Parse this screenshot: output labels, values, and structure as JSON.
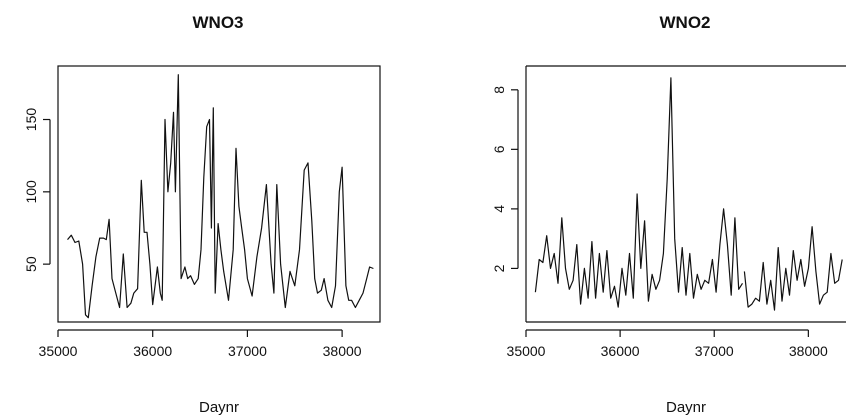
{
  "chart_data": [
    {
      "type": "line",
      "title": "WNO3",
      "xlabel": "Daynr",
      "ylabel": "",
      "xlim": [
        35000,
        38400
      ],
      "ylim": [
        10,
        187
      ],
      "xticks": [
        35000,
        36000,
        37000,
        38000
      ],
      "yticks": [
        50,
        100,
        150
      ],
      "grid": false,
      "segments": [
        {
          "x": [
            35100,
            35140,
            35180,
            35220,
            35260,
            35290,
            35320,
            35360,
            35400,
            35440,
            35480,
            35510,
            35540,
            35570,
            35610,
            35650,
            35690,
            35730,
            35770,
            35800,
            35840,
            35880,
            35910,
            35940,
            35970,
            36000,
            36050,
            36080,
            36100,
            36130,
            36160,
            36190,
            36220,
            36240,
            36270,
            36300,
            36340,
            36370,
            36400,
            36440,
            36480,
            36510,
            36540,
            36570,
            36600,
            36620,
            36640,
            36660,
            36690,
            36720,
            36750,
            36800,
            36850,
            36880,
            36910,
            36940,
            36970,
            37000,
            37050,
            37100,
            37150,
            37200,
            37250,
            37280,
            37310,
            37350,
            37400,
            37450,
            37500,
            37550,
            37600,
            37640,
            37680,
            37710,
            37740,
            37780,
            37810,
            37850,
            37890,
            37930,
            37970,
            38000,
            38040,
            38070,
            38100,
            38140,
            38180,
            38220,
            38260,
            38290,
            38330
          ],
          "y": [
            67,
            70,
            65,
            66,
            50,
            15,
            13,
            35,
            55,
            68,
            68,
            67,
            81,
            40,
            30,
            20,
            57,
            20,
            23,
            30,
            33,
            108,
            72,
            72,
            50,
            22,
            48,
            30,
            25,
            150,
            100,
            120,
            155,
            100,
            181,
            40,
            48,
            40,
            42,
            36,
            40,
            60,
            110,
            145,
            150,
            75,
            158,
            30,
            78,
            60,
            45,
            25,
            60,
            130,
            90,
            75,
            60,
            40,
            28,
            55,
            75,
            105,
            50,
            30,
            105,
            50,
            20,
            45,
            35,
            60,
            115,
            120,
            80,
            40,
            30,
            32,
            40,
            25,
            20,
            35,
            100,
            117,
            35,
            25,
            25,
            20,
            25,
            30,
            40,
            48,
            47
          ]
        }
      ]
    },
    {
      "type": "line",
      "title": "WNO2",
      "xlabel": "Daynr",
      "ylabel": "",
      "xlim": [
        35000,
        38400
      ],
      "ylim": [
        0.2,
        8.8
      ],
      "xticks": [
        35000,
        36000,
        37000,
        38000
      ],
      "yticks": [
        2,
        4,
        6,
        8
      ],
      "grid": false,
      "segments": [
        {
          "x": [
            35100,
            35140,
            35180,
            35220,
            35260,
            35300,
            35340,
            35380,
            35420,
            35460,
            35500,
            35540,
            35580,
            35620,
            35660,
            35700,
            35740,
            35780,
            35820,
            35860,
            35900,
            35940,
            35980,
            36020,
            36060,
            36100,
            36140,
            36180,
            36220,
            36260,
            36300,
            36340,
            36380,
            36420,
            36460,
            36500,
            36540,
            36580,
            36620,
            36660,
            36700,
            36740,
            36780,
            36820,
            36860,
            36900,
            36940,
            36980,
            37020,
            37060,
            37100,
            37140,
            37180,
            37220,
            37260,
            37300
          ],
          "y": [
            1.2,
            2.3,
            2.2,
            3.1,
            2.0,
            2.5,
            1.5,
            3.7,
            2.0,
            1.3,
            1.6,
            2.8,
            0.8,
            2.0,
            1.0,
            2.9,
            1.0,
            2.5,
            1.2,
            2.6,
            1.0,
            1.4,
            0.7,
            2.0,
            1.1,
            2.5,
            1.0,
            4.5,
            2.0,
            3.6,
            0.9,
            1.8,
            1.3,
            1.6,
            2.5,
            5.0,
            8.4,
            3.0,
            1.2,
            2.7,
            1.1,
            2.5,
            1.0,
            1.8,
            1.3,
            1.6,
            1.5,
            2.3,
            1.2,
            2.8,
            4.0,
            2.8,
            1.1,
            3.7,
            1.3,
            1.5
          ]
        },
        {
          "x": [
            37320,
            37360,
            37400,
            37440,
            37480,
            37520,
            37560,
            37600,
            37640,
            37680,
            37720,
            37760,
            37800,
            37840,
            37880,
            37920,
            37960,
            38000,
            38040,
            38080,
            38120,
            38160,
            38200,
            38240,
            38280,
            38320,
            38360
          ],
          "y": [
            1.9,
            0.7,
            0.8,
            1.0,
            0.9,
            2.2,
            0.8,
            1.6,
            0.6,
            2.7,
            0.9,
            2.0,
            1.1,
            2.6,
            1.6,
            2.3,
            1.4,
            2.0,
            3.4,
            1.9,
            0.8,
            1.1,
            1.2,
            2.5,
            1.5,
            1.6,
            2.3
          ]
        }
      ]
    }
  ]
}
